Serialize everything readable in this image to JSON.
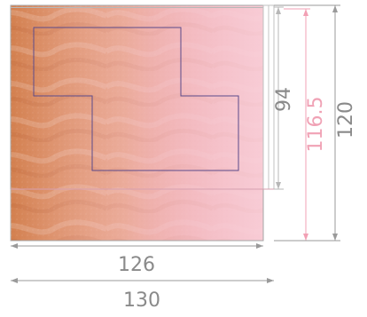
{
  "diagram": {
    "dimensions": {
      "bottom_inner": "126",
      "bottom_outer": "130",
      "right_94": "94",
      "right_116_5": "116.5",
      "right_120": "120"
    },
    "colors": {
      "line_gray": "#9a9a9a",
      "line_red": "#f2a0b4",
      "outline_purple": "#5b4a8a",
      "sand_dark": "#d07d4a",
      "sand_light": "#f0b08a",
      "pink_overlay": "#f3b7c6"
    },
    "content": {
      "image_description": "sand-texture-panel"
    }
  }
}
